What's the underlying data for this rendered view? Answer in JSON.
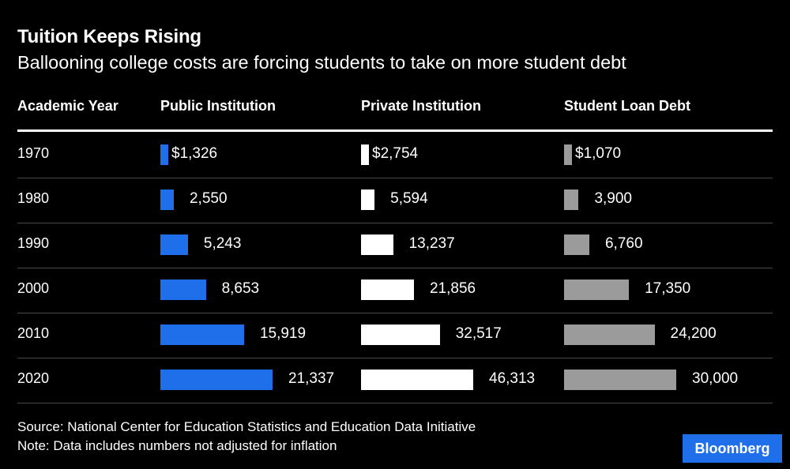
{
  "title": "Tuition Keeps Rising",
  "subtitle": "Ballooning college costs are forcing students to take on more student debt",
  "source": "Source: National Center for Education Statistics and Education Data Initiative",
  "note": "Note: Data includes numbers not adjusted for inflation",
  "brand": "Bloomberg",
  "chart_data": {
    "type": "bar",
    "x_header": "Academic Year",
    "categories": [
      "1970",
      "1980",
      "1990",
      "2000",
      "2010",
      "2020"
    ],
    "series": [
      {
        "name": "Public Institution",
        "color": "#1f6feb",
        "values": [
          1326,
          2550,
          5243,
          8653,
          15919,
          21337
        ],
        "labels": [
          "$1,326",
          "2,550",
          "5,243",
          "8,653",
          "15,919",
          "21,337"
        ]
      },
      {
        "name": "Private Institution",
        "color": "#ffffff",
        "values": [
          2754,
          5594,
          13237,
          21856,
          32517,
          46313
        ],
        "labels": [
          "$2,754",
          "5,594",
          "13,237",
          "21,856",
          "32,517",
          "46,313"
        ]
      },
      {
        "name": "Student Loan Debt",
        "color": "#9b9b9b",
        "values": [
          1070,
          3900,
          6760,
          17350,
          24200,
          30000
        ],
        "labels": [
          "$1,070",
          "3,900",
          "6,760",
          "17,350",
          "24,200",
          "30,000"
        ]
      }
    ]
  }
}
